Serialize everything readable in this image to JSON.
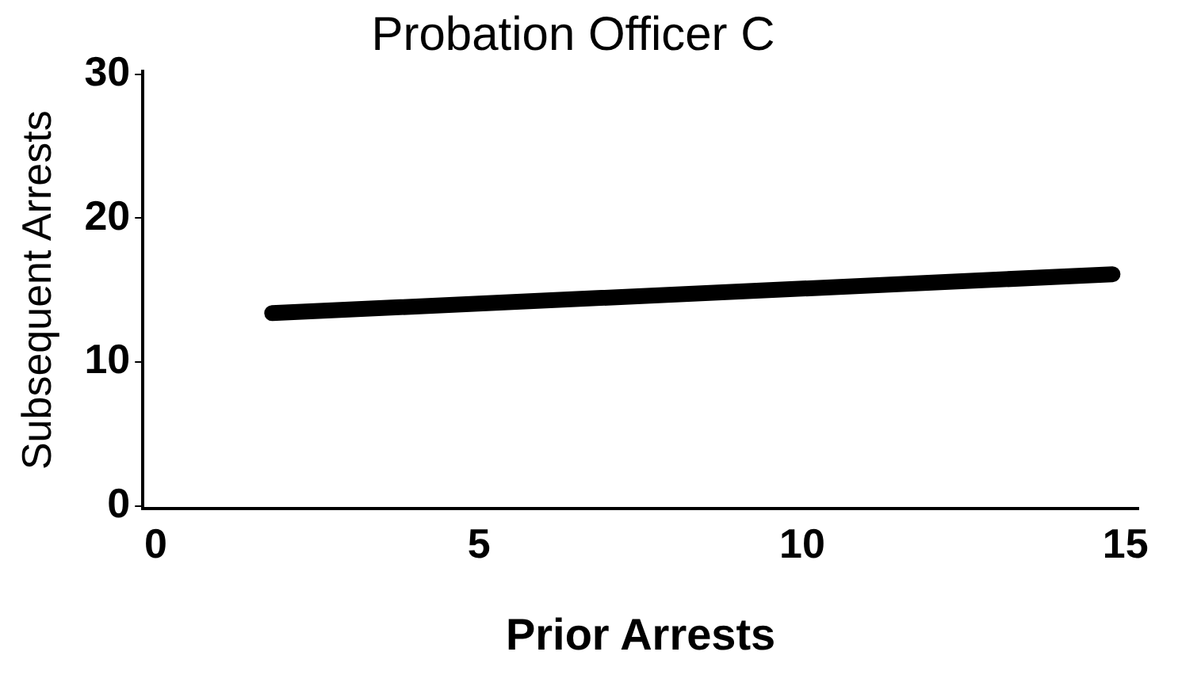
{
  "chart_data": {
    "type": "line",
    "title": "Probation Officer C",
    "xlabel": "Prior Arrests",
    "ylabel": "Subsequent Arrests",
    "series": [
      {
        "x": [
          1.8,
          14.8
        ],
        "values": [
          13.4,
          16.1
        ],
        "color": "#000000"
      }
    ],
    "xlim": [
      -0.2,
      15.2
    ],
    "xticks": [
      0,
      5,
      10,
      15
    ],
    "ylim": [
      -0.2,
      30.2
    ],
    "yticks": [
      0,
      10,
      20,
      30
    ],
    "grid": false,
    "legend": false,
    "marker": "none",
    "line_style": "solid"
  }
}
